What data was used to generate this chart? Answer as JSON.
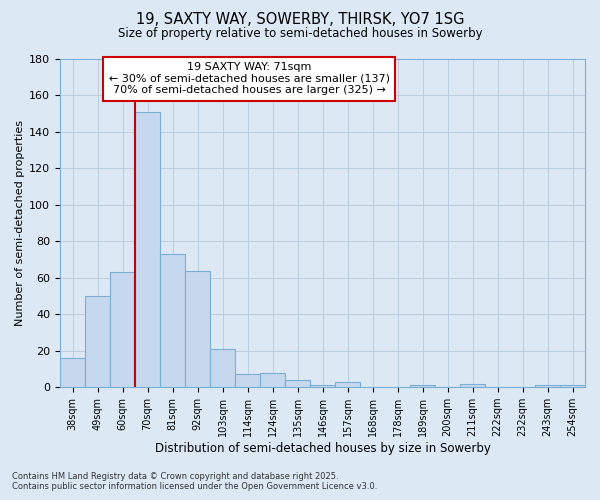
{
  "title1": "19, SAXTY WAY, SOWERBY, THIRSK, YO7 1SG",
  "title2": "Size of property relative to semi-detached houses in Sowerby",
  "xlabel": "Distribution of semi-detached houses by size in Sowerby",
  "ylabel": "Number of semi-detached properties",
  "categories": [
    "38sqm",
    "49sqm",
    "60sqm",
    "70sqm",
    "81sqm",
    "92sqm",
    "103sqm",
    "114sqm",
    "124sqm",
    "135sqm",
    "146sqm",
    "157sqm",
    "168sqm",
    "178sqm",
    "189sqm",
    "200sqm",
    "211sqm",
    "222sqm",
    "232sqm",
    "243sqm",
    "254sqm"
  ],
  "values": [
    16,
    50,
    63,
    151,
    73,
    64,
    21,
    7,
    8,
    4,
    1,
    3,
    0,
    0,
    1,
    0,
    2,
    0,
    0,
    1,
    1
  ],
  "bar_color": "#c5d8ee",
  "bar_edge_color": "#7aaed4",
  "property_line_index": 3,
  "annotation_title": "19 SAXTY WAY: 71sqm",
  "annotation_line1": "← 30% of semi-detached houses are smaller (137)",
  "annotation_line2": "70% of semi-detached houses are larger (325) →",
  "annotation_box_color": "#ffffff",
  "annotation_box_edge": "#cc0000",
  "grid_color": "#b8cfe0",
  "bg_color": "#dce9f5",
  "ylim": [
    0,
    180
  ],
  "yticks": [
    0,
    20,
    40,
    60,
    80,
    100,
    120,
    140,
    160,
    180
  ],
  "footer1": "Contains HM Land Registry data © Crown copyright and database right 2025.",
  "footer2": "Contains public sector information licensed under the Open Government Licence v3.0."
}
